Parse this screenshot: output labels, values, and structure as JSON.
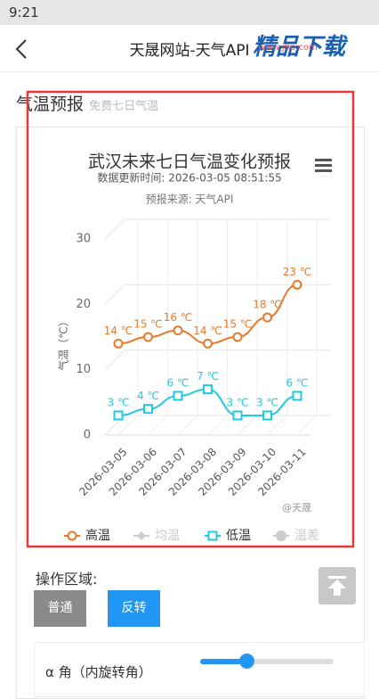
{
  "status_bar": {
    "time": "9:21"
  },
  "nav": {
    "title": "天晟网站-天气API"
  },
  "watermark": {
    "brand": "精品下载",
    "url": "www.j9p.com"
  },
  "section": {
    "title": "气温预报",
    "subtitle": "免费七日气温"
  },
  "chart_data": {
    "type": "line",
    "title": "武汉未来七日气温变化预报",
    "subtitle": "数据更新时间: 2026-03-05 08:51:55",
    "source": "预报来源: 天气API",
    "credit": "@天晟",
    "y_label": "气温（℃）",
    "categories": [
      "2026-03-05",
      "2026-03-06",
      "2026-03-07",
      "2026-03-08",
      "2026-03-09",
      "2026-03-10",
      "2026-03-11"
    ],
    "ylim": [
      0,
      30
    ],
    "yticks": [
      0,
      10,
      20,
      30
    ],
    "grid": true,
    "series": [
      {
        "name": "高温",
        "color": "#e8782a",
        "marker": "circle",
        "values": [
          14,
          15,
          16,
          14,
          15,
          18,
          23
        ],
        "value_labels": [
          "14 ℃",
          "15 ℃",
          "16 ℃",
          "14 ℃",
          "15 ℃",
          "18 ℃",
          "23 ℃"
        ]
      },
      {
        "name": "低温",
        "color": "#1ecbe1",
        "marker": "square",
        "values": [
          3,
          4,
          6,
          7,
          3,
          3,
          6
        ],
        "value_labels": [
          "3 ℃",
          "4 ℃",
          "6 ℃",
          "7 ℃",
          "3 ℃",
          "3 ℃",
          "6 ℃"
        ]
      }
    ],
    "legend": [
      {
        "name": "高温",
        "color": "#e8782a",
        "active": true,
        "marker": "circle"
      },
      {
        "name": "均温",
        "color": "#cccccc",
        "active": false,
        "marker": "diamond"
      },
      {
        "name": "低温",
        "color": "#1ecbe1",
        "active": true,
        "marker": "square"
      },
      {
        "name": "温差",
        "color": "#cccccc",
        "active": false,
        "marker": "dot"
      }
    ]
  },
  "controls": {
    "title": "操作区域:",
    "buttons": [
      "普通",
      "反转"
    ],
    "slider_label": "α 角（内旋转角）"
  }
}
